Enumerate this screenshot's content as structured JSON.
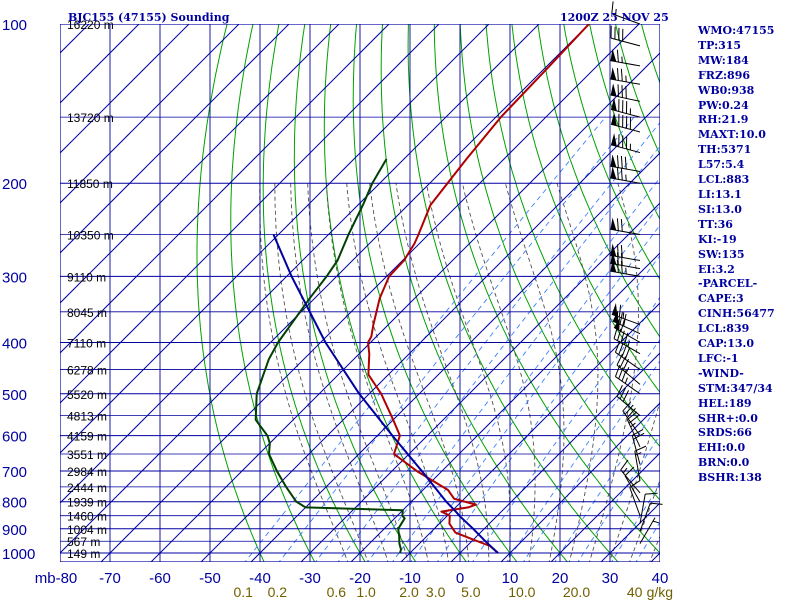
{
  "chart_data": {
    "type": "line",
    "title_left": "BJC155 (47155) Sounding",
    "title_right": "1200Z 25 NOV 25",
    "pressure_ticks": [
      "100",
      "200",
      "300",
      "400",
      "500",
      "600",
      "700",
      "800",
      "900",
      "1000"
    ],
    "pressure_values": [
      100,
      200,
      300,
      400,
      500,
      600,
      700,
      800,
      900,
      1000
    ],
    "x_ticks": [
      "mb-80",
      "-70",
      "-60",
      "-50",
      "-40",
      "-30",
      "-20",
      "-10",
      "0",
      "10",
      "20",
      "30",
      "40"
    ],
    "x_values": [
      -80,
      -70,
      -60,
      -50,
      -40,
      -30,
      -20,
      -10,
      0,
      10,
      20,
      30,
      40
    ],
    "height_labels": [
      {
        "p": 100,
        "label": "16220 m"
      },
      {
        "p": 150,
        "label": "13720 m"
      },
      {
        "p": 200,
        "label": "11850 m"
      },
      {
        "p": 250,
        "label": "10350 m"
      },
      {
        "p": 300,
        "label": "9110 m"
      },
      {
        "p": 350,
        "label": "8045 m"
      },
      {
        "p": 400,
        "label": "7110 m"
      },
      {
        "p": 450,
        "label": "6278 m"
      },
      {
        "p": 500,
        "label": "5520 m"
      },
      {
        "p": 550,
        "label": "4813 m"
      },
      {
        "p": 600,
        "label": "4159 m"
      },
      {
        "p": 650,
        "label": "3551 m"
      },
      {
        "p": 700,
        "label": "2984 m"
      },
      {
        "p": 750,
        "label": "2444 m"
      },
      {
        "p": 800,
        "label": "1939 m"
      },
      {
        "p": 850,
        "label": "1460 m"
      },
      {
        "p": 900,
        "label": "1004 m"
      },
      {
        "p": 950,
        "label": "567 m"
      },
      {
        "p": 1000,
        "label": "149 m"
      }
    ],
    "mixing_ratio_ticks": [
      {
        "value": 0.1,
        "label": "0.1"
      },
      {
        "value": 0.2,
        "label": "0.2"
      },
      {
        "value": 0.6,
        "label": "0.6"
      },
      {
        "value": 1.0,
        "label": "1.0"
      },
      {
        "value": 2.0,
        "label": "2.0"
      },
      {
        "value": 3.0,
        "label": "3.0"
      },
      {
        "value": 5.0,
        "label": "5.0"
      },
      {
        "value": 10.0,
        "label": "10.0"
      },
      {
        "value": 20.0,
        "label": "20.0"
      },
      {
        "value": 40.0,
        "label": "40"
      }
    ],
    "mixing_ratio_unit": "g/kg",
    "series": [
      {
        "name": "Temperature",
        "color": "#b00000",
        "points": [
          [
            1000,
            7.6
          ],
          [
            970,
            4.6
          ],
          [
            940,
            -0.6
          ],
          [
            915,
            -5.0
          ],
          [
            880,
            -8.0
          ],
          [
            850,
            -9.5
          ],
          [
            835,
            -12.0
          ],
          [
            820,
            -7.5
          ],
          [
            810,
            -6.5
          ],
          [
            790,
            -12.0
          ],
          [
            760,
            -15.0
          ],
          [
            700,
            -25.0
          ],
          [
            650,
            -33.0
          ],
          [
            600,
            -35.5
          ],
          [
            560,
            -40.0
          ],
          [
            500,
            -47.6
          ],
          [
            460,
            -54.0
          ],
          [
            420,
            -58.0
          ],
          [
            400,
            -60.5
          ],
          [
            390,
            -61.0
          ],
          [
            370,
            -63.0
          ],
          [
            330,
            -67.0
          ],
          [
            300,
            -69.5
          ],
          [
            280,
            -69.7
          ],
          [
            260,
            -71.0
          ],
          [
            250,
            -72.0
          ],
          [
            220,
            -75.5
          ],
          [
            180,
            -77.5
          ],
          [
            150,
            -79.0
          ],
          [
            120,
            -79.5
          ],
          [
            100,
            -80.0
          ]
        ]
      },
      {
        "name": "Dewpoint",
        "color": "#004000",
        "points": [
          [
            1000,
            -12.0
          ],
          [
            985,
            -12.5
          ],
          [
            960,
            -14.0
          ],
          [
            930,
            -15.5
          ],
          [
            900,
            -17.2
          ],
          [
            860,
            -18.0
          ],
          [
            850,
            -19.0
          ],
          [
            830,
            -20.0
          ],
          [
            820,
            -40.0
          ],
          [
            800,
            -43.0
          ],
          [
            750,
            -48.0
          ],
          [
            700,
            -53.0
          ],
          [
            650,
            -58.0
          ],
          [
            620,
            -60.0
          ],
          [
            600,
            -62.0
          ],
          [
            560,
            -67.5
          ],
          [
            500,
            -72.5
          ],
          [
            460,
            -75.0
          ],
          [
            430,
            -77.0
          ],
          [
            400,
            -78.5
          ],
          [
            370,
            -79.5
          ],
          [
            330,
            -81.0
          ],
          [
            300,
            -82.0
          ],
          [
            280,
            -83.0
          ],
          [
            250,
            -86.0
          ],
          [
            220,
            -89.0
          ],
          [
            200,
            -91.5
          ],
          [
            180,
            -93.5
          ]
        ]
      },
      {
        "name": "Parcel",
        "color": "#0000a0",
        "points": [
          [
            1000,
            7.6
          ],
          [
            950,
            2.7
          ],
          [
            900,
            -2.2
          ],
          [
            850,
            -7.6
          ],
          [
            839,
            -8.7
          ],
          [
            800,
            -13.0
          ],
          [
            700,
            -24.0
          ],
          [
            600,
            -37.0
          ],
          [
            500,
            -52.0
          ],
          [
            400,
            -69.0
          ],
          [
            300,
            -89.0
          ],
          [
            250,
            -101.0
          ]
        ]
      }
    ],
    "wind_barbs": [
      {
        "p": 100,
        "dir": 290,
        "spd": 15
      },
      {
        "p": 110,
        "dir": 285,
        "spd": 40
      },
      {
        "p": 120,
        "dir": 280,
        "spd": 65
      },
      {
        "p": 130,
        "dir": 280,
        "spd": 75
      },
      {
        "p": 140,
        "dir": 282,
        "spd": 80
      },
      {
        "p": 150,
        "dir": 285,
        "spd": 85
      },
      {
        "p": 160,
        "dir": 285,
        "spd": 90
      },
      {
        "p": 175,
        "dir": 285,
        "spd": 85
      },
      {
        "p": 190,
        "dir": 280,
        "spd": 80
      },
      {
        "p": 200,
        "dir": 280,
        "spd": 75
      },
      {
        "p": 250,
        "dir": 280,
        "spd": 70
      },
      {
        "p": 280,
        "dir": 280,
        "spd": 70
      },
      {
        "p": 290,
        "dir": 280,
        "spd": 70
      },
      {
        "p": 300,
        "dir": 280,
        "spd": 75
      },
      {
        "p": 370,
        "dir": 290,
        "spd": 65
      },
      {
        "p": 385,
        "dir": 295,
        "spd": 70
      },
      {
        "p": 400,
        "dir": 300,
        "spd": 60
      },
      {
        "p": 420,
        "dir": 300,
        "spd": 45
      },
      {
        "p": 450,
        "dir": 305,
        "spd": 40
      },
      {
        "p": 480,
        "dir": 310,
        "spd": 35
      },
      {
        "p": 500,
        "dir": 305,
        "spd": 35
      },
      {
        "p": 550,
        "dir": 310,
        "spd": 30
      },
      {
        "p": 600,
        "dir": 325,
        "spd": 30
      },
      {
        "p": 630,
        "dir": 335,
        "spd": 25
      },
      {
        "p": 680,
        "dir": 345,
        "spd": 20
      },
      {
        "p": 730,
        "dir": 350,
        "spd": 15
      },
      {
        "p": 770,
        "dir": 320,
        "spd": 15
      },
      {
        "p": 800,
        "dir": 330,
        "spd": 10
      },
      {
        "p": 850,
        "dir": 340,
        "spd": 10
      },
      {
        "p": 880,
        "dir": 10,
        "spd": 10
      },
      {
        "p": 910,
        "dir": 20,
        "spd": 10
      },
      {
        "p": 960,
        "dir": 30,
        "spd": 5
      }
    ],
    "axes": {
      "p_range": [
        100,
        1050
      ],
      "t_range": [
        -80,
        40
      ],
      "skew": "skew-T log-p",
      "grid": true
    }
  },
  "indices": [
    "WMO:47155",
    "TP:315",
    "MW:184",
    "FRZ:896",
    "WB0:938",
    "PW:0.24",
    "RH:21.9",
    "MAXT:10.0",
    "TH:5371",
    "L57:5.4",
    "LCL:883",
    "LI:13.1",
    "SI:13.0",
    "TT:36",
    "KI:-19",
    "SW:135",
    "EI:3.2",
    "-PARCEL-",
    "CAPE:3",
    "CINH:56477",
    "LCL:839",
    "CAP:13.0",
    "LFC:-1",
    "-WIND-",
    "STM:347/34",
    "HEL:189",
    "SHR+:0.0",
    "SRDS:66",
    "EHI:0.0",
    "BRN:0.0",
    "BSHR:138"
  ],
  "colors": {
    "isobar": "#0000a0",
    "isotherm": "#0000a0",
    "dry_adiabat": "#00a000",
    "moist_adiabat": "#505050",
    "mixing_ratio": "#4080ff",
    "temperature": "#b00000",
    "dewpoint": "#004000",
    "parcel": "#0000a0"
  }
}
